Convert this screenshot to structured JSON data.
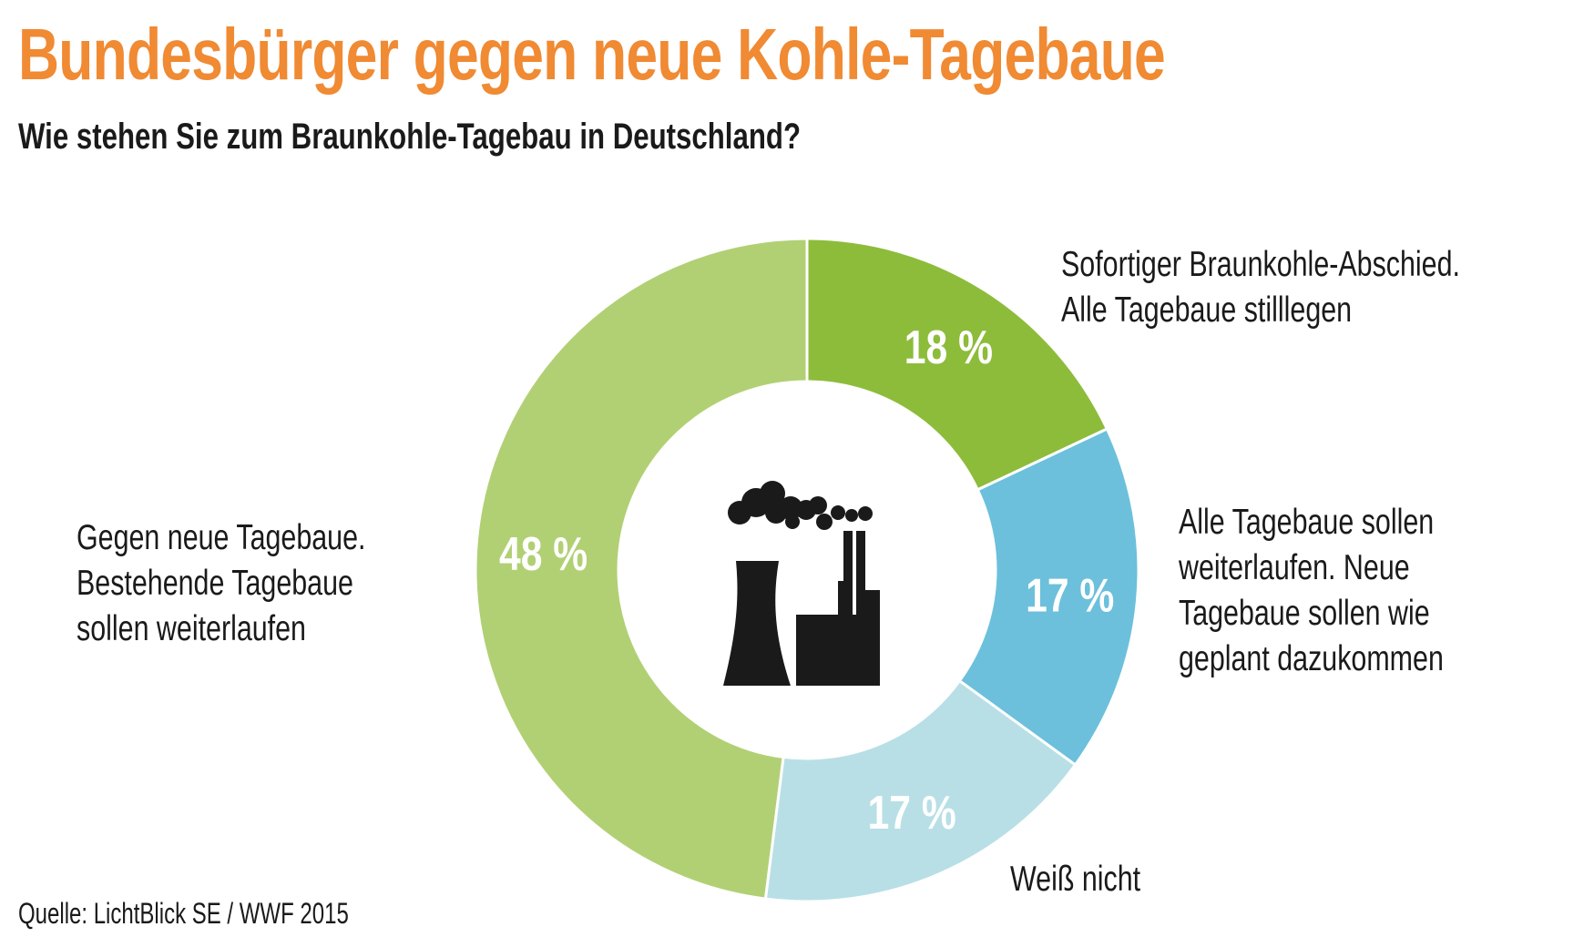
{
  "header": {
    "title": "Bundesbürger gegen neue Kohle-Tagebaue",
    "subtitle": "Wie stehen Sie zum Braunkohle-Tagebau in Deutschland?"
  },
  "chart_data": {
    "type": "pie",
    "donut": true,
    "title": "Bundesbürger gegen neue Kohle-Tagebaue",
    "subtitle": "Wie stehen Sie zum Braunkohle-Tagebau in Deutschland?",
    "slices": [
      {
        "label_lines": [
          "Sofortiger Braunkohle-Abschied.",
          "Alle Tagebaue stilllegen"
        ],
        "value": 18,
        "value_label": "18 %",
        "color": "#8dbc3b"
      },
      {
        "label_lines": [
          "Alle Tagebaue sollen",
          "weiterlaufen. Neue",
          "Tagebaue sollen wie",
          "geplant dazukommen"
        ],
        "value": 17,
        "value_label": "17 %",
        "color": "#6cc0dc"
      },
      {
        "label_lines": [
          "Weiß nicht"
        ],
        "value": 17,
        "value_label": "17 %",
        "color": "#b8dfe6"
      },
      {
        "label_lines": [
          "Gegen neue Tagebaue.",
          "Bestehende Tagebaue",
          "sollen weiterlaufen"
        ],
        "value": 48,
        "value_label": "48 %",
        "color": "#b1d074"
      }
    ],
    "center_icon": "factory-smoke-icon"
  },
  "footer": {
    "source": "Quelle: LichtBlick SE / WWF 2015"
  }
}
